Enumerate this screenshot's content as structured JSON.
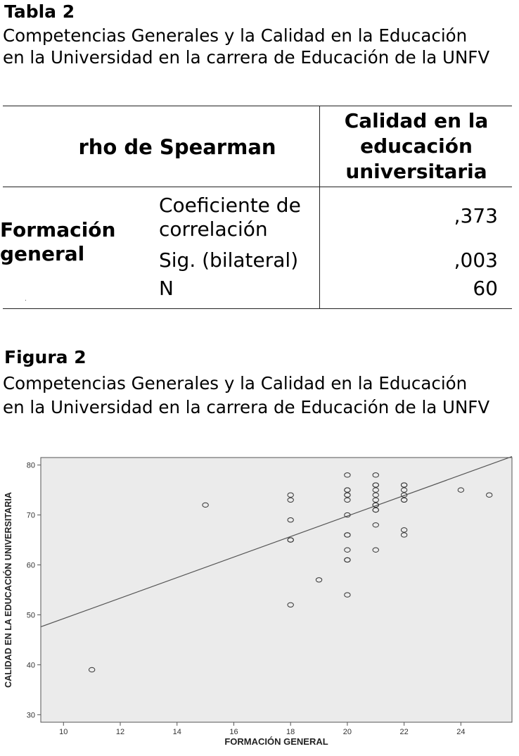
{
  "table_caption": {
    "label": "Tabla 2",
    "line1": "Competencias Generales y la Calidad en la Educación",
    "line2": "en la Universidad en la carrera de Educación de la UNFV"
  },
  "table": {
    "header_left": "rho de Spearman",
    "header_right": [
      "Calidad en la",
      "educación",
      "universitaria"
    ],
    "row_header": [
      "Formación",
      "general"
    ],
    "rows": [
      {
        "label_lines": [
          "Coeficiente de",
          "correlación"
        ],
        "value": ",373"
      },
      {
        "label_lines": [
          "Sig. (bilateral)"
        ],
        "value": ",003"
      },
      {
        "label_lines": [
          "N"
        ],
        "value": "60"
      }
    ]
  },
  "figure_caption": {
    "label": "Figura 2",
    "line1": "Competencias Generales y la Calidad en la Educación",
    "line2": "en la Universidad en la carrera de Educación de la UNFV"
  },
  "chart_data": {
    "type": "scatter",
    "xlabel": "FORMACIÓN GENERAL",
    "ylabel": "CALIDAD EN LA EDUCACIÓN UNIVERSITARIA",
    "xlim": [
      9.2,
      25.8
    ],
    "ylim": [
      28.5,
      81.5
    ],
    "xticks": [
      10,
      12,
      14,
      16,
      18,
      20,
      22,
      24
    ],
    "yticks": [
      30,
      40,
      50,
      60,
      70,
      80
    ],
    "plot_background": "#ebebeb",
    "marker_color": "#333333",
    "points": [
      [
        11,
        39
      ],
      [
        15,
        72
      ],
      [
        18,
        74
      ],
      [
        18,
        73
      ],
      [
        18,
        69
      ],
      [
        18,
        65
      ],
      [
        18,
        65
      ],
      [
        18,
        52
      ],
      [
        19,
        57
      ],
      [
        20,
        78
      ],
      [
        20,
        75
      ],
      [
        20,
        75
      ],
      [
        20,
        74
      ],
      [
        20,
        74
      ],
      [
        20,
        73
      ],
      [
        20,
        70
      ],
      [
        20,
        66
      ],
      [
        20,
        66
      ],
      [
        20,
        63
      ],
      [
        20,
        61
      ],
      [
        20,
        61
      ],
      [
        20,
        54
      ],
      [
        21,
        78
      ],
      [
        21,
        76
      ],
      [
        21,
        76
      ],
      [
        21,
        75
      ],
      [
        21,
        74
      ],
      [
        21,
        73
      ],
      [
        21,
        72
      ],
      [
        21,
        72
      ],
      [
        21,
        71
      ],
      [
        21,
        71
      ],
      [
        21,
        68
      ],
      [
        21,
        63
      ],
      [
        22,
        76
      ],
      [
        22,
        76
      ],
      [
        22,
        75
      ],
      [
        22,
        74
      ],
      [
        22,
        73
      ],
      [
        22,
        73
      ],
      [
        22,
        67
      ],
      [
        22,
        66
      ],
      [
        24,
        75
      ],
      [
        25,
        74
      ]
    ],
    "fit_line": {
      "x": [
        9.2,
        25.8
      ],
      "y": [
        47.6,
        81.7
      ]
    }
  }
}
